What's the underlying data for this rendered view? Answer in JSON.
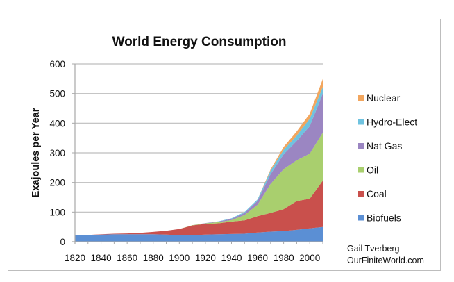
{
  "chart_data": {
    "type": "area",
    "stacked": true,
    "title": "World Energy Consumption",
    "xlabel": "",
    "ylabel": "Exajoules per Year",
    "xlim": [
      1820,
      2010
    ],
    "ylim": [
      0,
      600
    ],
    "yticks": [
      0,
      100,
      200,
      300,
      400,
      500,
      600
    ],
    "xtick_labels": [
      "1820",
      "1840",
      "1860",
      "1880",
      "1900",
      "1920",
      "1940",
      "1960",
      "1980",
      "2000"
    ],
    "x": [
      1820,
      1830,
      1840,
      1850,
      1860,
      1870,
      1880,
      1890,
      1900,
      1910,
      1920,
      1930,
      1940,
      1950,
      1960,
      1970,
      1980,
      1990,
      2000,
      2010
    ],
    "grid": true,
    "legend_position": "right",
    "series": [
      {
        "name": "Biofuels",
        "color": "#5b8fd4",
        "values": [
          22,
          23,
          24,
          25,
          25,
          25,
          25,
          24,
          22,
          22,
          24,
          25,
          26,
          27,
          31,
          34,
          36,
          40,
          45,
          50
        ]
      },
      {
        "name": "Coal",
        "color": "#c9504c",
        "values": [
          0,
          0,
          1,
          2,
          3,
          5,
          8,
          13,
          21,
          33,
          36,
          37,
          42,
          45,
          55,
          63,
          74,
          97,
          100,
          156
        ]
      },
      {
        "name": "Oil",
        "color": "#a9cf6e",
        "values": [
          0,
          0,
          0,
          0,
          0,
          0,
          0,
          0,
          0,
          1,
          2,
          4,
          5,
          18,
          39,
          98,
          135,
          138,
          152,
          162
        ]
      },
      {
        "name": "Nat Gas",
        "color": "#9b86c2",
        "values": [
          0,
          0,
          0,
          0,
          0,
          0,
          0,
          0,
          0,
          0,
          1,
          2,
          4,
          7,
          13,
          33,
          50,
          65,
          93,
          132
        ]
      },
      {
        "name": "Hydro-Elect",
        "color": "#6fc3e0",
        "values": [
          0,
          0,
          0,
          0,
          0,
          0,
          0,
          0,
          0,
          0,
          0,
          1,
          2,
          3,
          5,
          12,
          15,
          18,
          25,
          22
        ]
      },
      {
        "name": "Nuclear",
        "color": "#f2a65e",
        "values": [
          0,
          0,
          0,
          0,
          0,
          0,
          0,
          0,
          0,
          0,
          0,
          0,
          0,
          0,
          0,
          4,
          10,
          14,
          17,
          27
        ]
      }
    ],
    "legend_order": [
      "Nuclear",
      "Hydro-Elect",
      "Nat Gas",
      "Oil",
      "Coal",
      "Biofuels"
    ],
    "annotations": [
      "Gail Tverberg",
      "OurFiniteWorld.com"
    ]
  }
}
